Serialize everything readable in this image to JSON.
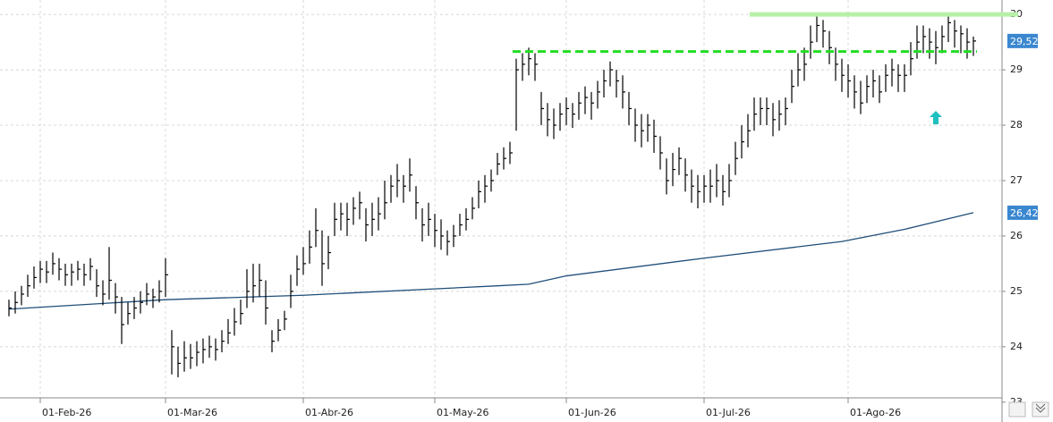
{
  "chart_data": {
    "type": "ohlc",
    "categories": [
      "26-Ene-26",
      "27-Ene-26",
      "28-Ene-26",
      "29-Ene-26",
      "30-Ene-26",
      "02-Feb-26",
      "03-Feb-26",
      "04-Feb-26",
      "05-Feb-26",
      "06-Feb-26",
      "09-Feb-26",
      "10-Feb-26",
      "11-Feb-26",
      "12-Feb-26",
      "13-Feb-26",
      "16-Feb-26",
      "17-Feb-26",
      "18-Feb-26",
      "19-Feb-26",
      "20-Feb-26",
      "23-Feb-26",
      "24-Feb-26",
      "25-Feb-26",
      "26-Feb-26",
      "27-Feb-26",
      "02-Mar-26",
      "03-Mar-26",
      "04-Mar-26",
      "05-Mar-26",
      "06-Mar-26",
      "09-Mar-26",
      "10-Mar-26",
      "11-Mar-26",
      "12-Mar-26",
      "13-Mar-26",
      "16-Mar-26",
      "17-Mar-26",
      "18-Mar-26",
      "19-Mar-26",
      "20-Mar-26",
      "23-Mar-26",
      "24-Mar-26",
      "25-Mar-26",
      "26-Mar-26",
      "27-Mar-26",
      "30-Mar-26",
      "31-Mar-26",
      "01-Abr-26",
      "02-Abr-26",
      "06-Abr-26",
      "07-Abr-26",
      "08-Abr-26",
      "09-Abr-26",
      "10-Abr-26",
      "13-Abr-26",
      "14-Abr-26",
      "15-Abr-26",
      "16-Abr-26",
      "17-Abr-26",
      "20-Abr-26",
      "21-Abr-26",
      "22-Abr-26",
      "23-Abr-26",
      "24-Abr-26",
      "27-Abr-26",
      "28-Abr-26",
      "29-Abr-26",
      "30-Abr-26",
      "01-May-26",
      "04-May-26",
      "05-May-26",
      "06-May-26",
      "07-May-26",
      "08-May-26",
      "11-May-26",
      "12-May-26",
      "13-May-26",
      "14-May-26",
      "15-May-26",
      "18-May-26",
      "19-May-26",
      "20-May-26",
      "21-May-26",
      "22-May-26",
      "25-May-26",
      "26-May-26",
      "27-May-26",
      "28-May-26",
      "29-May-26",
      "01-Jun-26",
      "02-Jun-26",
      "03-Jun-26",
      "04-Jun-26",
      "05-Jun-26",
      "08-Jun-26",
      "09-Jun-26",
      "10-Jun-26",
      "11-Jun-26",
      "12-Jun-26",
      "15-Jun-26",
      "16-Jun-26",
      "17-Jun-26",
      "18-Jun-26",
      "19-Jun-26",
      "22-Jun-26",
      "23-Jun-26",
      "24-Jun-26",
      "25-Jun-26",
      "26-Jun-26",
      "29-Jun-26",
      "30-Jun-26",
      "01-Jul-26",
      "02-Jul-26",
      "03-Jul-26",
      "06-Jul-26",
      "07-Jul-26",
      "08-Jul-26",
      "09-Jul-26",
      "10-Jul-26",
      "13-Jul-26",
      "14-Jul-26",
      "15-Jul-26",
      "16-Jul-26",
      "17-Jul-26",
      "20-Jul-26",
      "21-Jul-26",
      "22-Jul-26",
      "23-Jul-26",
      "24-Jul-26",
      "27-Jul-26",
      "28-Jul-26",
      "29-Jul-26",
      "30-Jul-26",
      "31-Jul-26",
      "03-Ago-26",
      "04-Ago-26",
      "05-Ago-26",
      "06-Ago-26",
      "07-Ago-26",
      "10-Ago-26",
      "11-Ago-26",
      "12-Ago-26",
      "13-Ago-26",
      "14-Ago-26",
      "17-Ago-26",
      "18-Ago-26",
      "19-Ago-26",
      "20-Ago-26",
      "21-Ago-26",
      "24-Ago-26",
      "25-Ago-26",
      "26-Ago-26",
      "27-Ago-26",
      "28-Ago-26",
      "31-Ago-26"
    ],
    "high": [
      24.85,
      25.0,
      25.1,
      25.3,
      25.45,
      25.55,
      25.55,
      25.7,
      25.6,
      25.5,
      25.5,
      25.55,
      25.5,
      25.6,
      25.4,
      25.2,
      25.8,
      25.15,
      24.9,
      24.8,
      24.9,
      25.0,
      25.15,
      25.05,
      25.2,
      25.6,
      24.3,
      24.0,
      24.1,
      24.05,
      24.1,
      24.15,
      24.2,
      24.15,
      24.3,
      24.5,
      24.7,
      24.85,
      25.4,
      25.5,
      25.5,
      25.2,
      24.3,
      24.5,
      24.65,
      25.3,
      25.65,
      25.8,
      26.1,
      26.5,
      26.1,
      26.0,
      26.6,
      26.6,
      26.6,
      26.7,
      26.8,
      26.5,
      26.6,
      26.7,
      27.0,
      27.1,
      27.3,
      27.1,
      27.4,
      26.9,
      26.5,
      26.6,
      26.4,
      26.3,
      26.1,
      26.2,
      26.4,
      26.5,
      26.7,
      27.0,
      27.1,
      27.2,
      27.5,
      27.6,
      27.7,
      29.2,
      29.3,
      29.4,
      29.3,
      28.6,
      28.4,
      28.3,
      28.4,
      28.5,
      28.4,
      28.6,
      28.7,
      28.6,
      28.8,
      29.0,
      29.15,
      29.0,
      28.9,
      28.6,
      28.3,
      28.2,
      28.2,
      28.1,
      27.8,
      27.4,
      27.5,
      27.6,
      27.4,
      27.2,
      27.1,
      27.1,
      27.2,
      27.3,
      27.1,
      27.3,
      27.7,
      28.0,
      28.2,
      28.5,
      28.5,
      28.5,
      28.4,
      28.45,
      28.5,
      29.0,
      29.3,
      29.4,
      29.8,
      30.0,
      29.9,
      29.7,
      29.4,
      29.2,
      29.1,
      28.9,
      28.8,
      28.9,
      29.0,
      28.9,
      29.1,
      29.2,
      29.1,
      29.1,
      29.5,
      29.8,
      29.8,
      29.75,
      29.7,
      29.8,
      30.0,
      29.9,
      29.8,
      29.75,
      29.6
    ],
    "low": [
      24.55,
      24.6,
      24.75,
      24.9,
      25.05,
      25.15,
      25.15,
      25.3,
      25.2,
      25.1,
      25.1,
      25.2,
      25.1,
      25.2,
      24.9,
      24.75,
      24.85,
      24.6,
      24.05,
      24.4,
      24.5,
      24.6,
      24.75,
      24.7,
      24.8,
      24.9,
      23.5,
      23.45,
      23.55,
      23.6,
      23.65,
      23.7,
      23.8,
      23.75,
      23.9,
      24.05,
      24.2,
      24.4,
      24.7,
      24.8,
      24.9,
      24.4,
      23.9,
      24.1,
      24.3,
      24.7,
      25.1,
      25.3,
      25.5,
      25.8,
      25.1,
      25.4,
      26.0,
      26.1,
      26.0,
      26.2,
      26.3,
      25.9,
      26.0,
      26.1,
      26.3,
      26.6,
      26.7,
      26.6,
      26.8,
      26.3,
      25.9,
      26.0,
      25.8,
      25.75,
      25.65,
      25.8,
      26.0,
      26.1,
      26.3,
      26.5,
      26.6,
      26.8,
      27.1,
      27.2,
      27.3,
      27.9,
      28.8,
      28.9,
      28.8,
      28.0,
      27.8,
      27.75,
      27.9,
      28.0,
      27.95,
      28.1,
      28.2,
      28.1,
      28.3,
      28.5,
      28.7,
      28.5,
      28.3,
      28.0,
      27.7,
      27.6,
      27.7,
      27.5,
      27.2,
      26.75,
      26.9,
      27.1,
      26.8,
      26.6,
      26.5,
      26.6,
      26.6,
      26.7,
      26.55,
      26.7,
      27.1,
      27.4,
      27.6,
      27.9,
      28.0,
      28.0,
      27.8,
      27.9,
      28.0,
      28.4,
      28.7,
      28.8,
      29.2,
      29.5,
      29.4,
      29.1,
      28.8,
      28.6,
      28.5,
      28.3,
      28.2,
      28.4,
      28.5,
      28.4,
      28.6,
      28.7,
      28.6,
      28.6,
      28.9,
      29.2,
      29.3,
      29.2,
      29.1,
      29.3,
      29.5,
      29.4,
      29.3,
      29.2,
      29.25
    ],
    "close": [
      24.7,
      24.8,
      24.95,
      25.1,
      25.25,
      25.4,
      25.35,
      25.5,
      25.4,
      25.3,
      25.35,
      25.4,
      25.3,
      25.45,
      25.1,
      24.95,
      25.2,
      24.9,
      24.4,
      24.6,
      24.7,
      24.8,
      24.95,
      24.9,
      25.0,
      25.3,
      24.0,
      23.7,
      23.8,
      23.8,
      23.9,
      23.95,
      24.0,
      23.95,
      24.1,
      24.25,
      24.45,
      24.6,
      25.0,
      25.1,
      25.2,
      24.7,
      24.1,
      24.3,
      24.5,
      25.0,
      25.4,
      25.5,
      25.8,
      26.1,
      25.5,
      25.7,
      26.3,
      26.4,
      26.3,
      26.5,
      26.6,
      26.2,
      26.3,
      26.4,
      26.6,
      26.9,
      27.0,
      26.9,
      27.1,
      26.6,
      26.2,
      26.3,
      26.1,
      26.0,
      25.9,
      26.0,
      26.2,
      26.3,
      26.5,
      26.8,
      26.9,
      27.0,
      27.3,
      27.4,
      27.5,
      29.0,
      29.1,
      29.2,
      29.1,
      28.3,
      28.1,
      28.0,
      28.2,
      28.3,
      28.2,
      28.4,
      28.5,
      28.4,
      28.6,
      28.8,
      29.0,
      28.8,
      28.6,
      28.3,
      28.0,
      27.9,
      28.0,
      27.8,
      27.5,
      27.0,
      27.2,
      27.4,
      27.1,
      26.9,
      26.8,
      26.9,
      26.9,
      27.0,
      26.8,
      27.0,
      27.4,
      27.7,
      27.9,
      28.2,
      28.3,
      28.3,
      28.1,
      28.2,
      28.3,
      28.7,
      29.0,
      29.1,
      29.5,
      29.8,
      29.7,
      29.4,
      29.1,
      28.9,
      28.8,
      28.6,
      28.4,
      28.7,
      28.8,
      28.6,
      28.9,
      29.0,
      28.9,
      28.9,
      29.2,
      29.5,
      29.6,
      29.5,
      29.4,
      29.6,
      29.85,
      29.7,
      29.65,
      29.5,
      29.52
    ],
    "color": "#000000",
    "moving_average": {
      "color": "#1f4e79",
      "x": [
        "26-Ene-26",
        "02-Mar-26",
        "01-Abr-26",
        "15-May-26",
        "22-May-26",
        "01-Jun-26",
        "01-Jul-26",
        "31-Jul-26",
        "14-Ago-26",
        "31-Ago-26"
      ],
      "values": [
        24.68,
        24.85,
        24.93,
        25.1,
        25.13,
        25.28,
        25.6,
        25.9,
        26.12,
        26.42
      ]
    },
    "levels": [
      {
        "value": 30,
        "color": "#b8f0a8",
        "style": "solid"
      },
      {
        "value": 29.33,
        "color": "#22dd22",
        "style": "dashed"
      }
    ],
    "price_tags": [
      {
        "value": 29.52,
        "label": "29,52",
        "color": "#3a87d0"
      },
      {
        "value": 26.42,
        "label": "26,42",
        "color": "#3a87d0"
      }
    ],
    "ylim": [
      22.9,
      30.26
    ],
    "yticks": [
      23,
      24,
      25,
      26,
      27,
      28,
      29,
      30
    ],
    "xticks": [
      {
        "value": "02-Feb-26",
        "label": "01-Feb-26"
      },
      {
        "value": "02-Mar-26",
        "label": "01-Mar-26"
      },
      "01-Abr-26",
      "01-May-26",
      "01-Jun-26",
      "01-Jul-26",
      {
        "value": "03-Ago-26",
        "label": "01-Ago-26"
      }
    ],
    "grid": true
  }
}
